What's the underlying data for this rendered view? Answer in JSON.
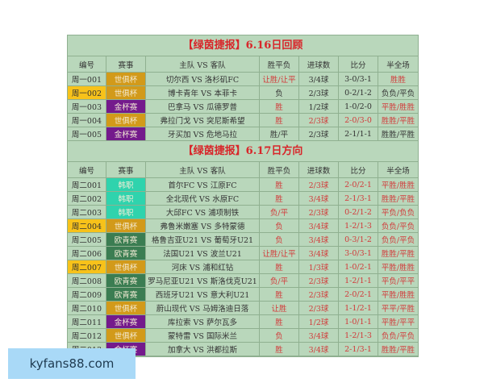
{
  "headers": [
    "编号",
    "赛事",
    "主队 VS 客队",
    "胜平负",
    "进球数",
    "比分",
    "半全场"
  ],
  "comp_colors": {
    "世俱杯": "#d29a1a",
    "金杯赛": "#741a8c",
    "韩职": "#2fd3ad",
    "欧青赛": "#3b7d52"
  },
  "id_highlight": "#f7c21a",
  "accent_red": "#d23a3a",
  "sections": [
    {
      "title": "【绿茵捷报】6.16日回顾",
      "rows": [
        {
          "id": "周一001",
          "comp": "世俱杯",
          "match": "切尔西 VS 洛杉矶FC",
          "wdl": "让胜/让平",
          "goals": "3/4球",
          "score": "3-0/3-1",
          "htft": "胜胜",
          "red": [
            3,
            6
          ],
          "hl": false
        },
        {
          "id": "周一002",
          "comp": "世俱杯",
          "match": "博卡青年 VS 本菲卡",
          "wdl": "负",
          "goals": "2/3球",
          "score": "0-2/1-2",
          "htft": "负负/平负",
          "red": [],
          "hl": true
        },
        {
          "id": "周一003",
          "comp": "金杯赛",
          "match": "巴拿马 VS 瓜德罗普",
          "wdl": "胜",
          "goals": "1/2球",
          "score": "1-0/2-0",
          "htft": "平胜/胜胜",
          "red": [
            3,
            6
          ],
          "hl": false
        },
        {
          "id": "周一004",
          "comp": "世俱杯",
          "match": "弗拉门戈 VS 突尼斯希望",
          "wdl": "胜",
          "goals": "2/3球",
          "score": "2-0/3-0",
          "htft": "胜胜/平胜",
          "red": [
            3,
            4,
            5,
            6
          ],
          "hl": false
        },
        {
          "id": "周一005",
          "comp": "金杯赛",
          "match": "牙买加 VS 危地马拉",
          "wdl": "胜/平",
          "goals": "2/3球",
          "score": "2-1/1-1",
          "htft": "胜胜/平胜",
          "red": [],
          "hl": false
        }
      ]
    },
    {
      "title": "【绿茵捷报】6.17日方向",
      "rows": [
        {
          "id": "周二001",
          "comp": "韩职",
          "match": "首尔FC VS 江原FC",
          "wdl": "胜",
          "goals": "2/3球",
          "score": "2-0/2-1",
          "htft": "平胜/胜胜",
          "red": [
            3,
            4,
            5,
            6
          ],
          "hl": false
        },
        {
          "id": "周二002",
          "comp": "韩职",
          "match": "全北现代 VS 水原FC",
          "wdl": "胜",
          "goals": "3/4球",
          "score": "2-1/3-1",
          "htft": "胜胜/平胜",
          "red": [
            3,
            4,
            5,
            6
          ],
          "hl": false
        },
        {
          "id": "周二003",
          "comp": "韩职",
          "match": "大邱FC VS 浦项制铁",
          "wdl": "负/平",
          "goals": "2/3球",
          "score": "0-2/1-2",
          "htft": "平负/负负",
          "red": [
            3,
            4,
            5,
            6
          ],
          "hl": false
        },
        {
          "id": "周二004",
          "comp": "世俱杯",
          "match": "弗鲁米嫩塞 VS 多特蒙德",
          "wdl": "负",
          "goals": "3/4球",
          "score": "1-2/1-3",
          "htft": "负负/平负",
          "red": [
            3,
            4,
            5,
            6
          ],
          "hl": true
        },
        {
          "id": "周二005",
          "comp": "欧青赛",
          "match": "格鲁吉亚U21 VS 葡萄牙U21",
          "wdl": "负",
          "goals": "3/4球",
          "score": "0-3/1-2",
          "htft": "负负/平负",
          "red": [
            3,
            4,
            5,
            6
          ],
          "hl": false
        },
        {
          "id": "周二006",
          "comp": "欧青赛",
          "match": "法国U21 VS 波兰U21",
          "wdl": "让胜/让平",
          "goals": "3/4球",
          "score": "3-0/3-1",
          "htft": "胜胜/平胜",
          "red": [
            3,
            4,
            5,
            6
          ],
          "hl": false
        },
        {
          "id": "周二007",
          "comp": "世俱杯",
          "match": "河床 VS 浦和红钻",
          "wdl": "胜",
          "goals": "1/3球",
          "score": "1-0/2-1",
          "htft": "平胜/胜胜",
          "red": [
            3,
            4,
            5,
            6
          ],
          "hl": true
        },
        {
          "id": "周二008",
          "comp": "欧青赛",
          "match": "罗马尼亚U21 VS 斯洛伐克U21",
          "wdl": "负/平",
          "goals": "2/3球",
          "score": "1-2/1-1",
          "htft": "平负/平平",
          "red": [
            3,
            4,
            5,
            6
          ],
          "hl": false
        },
        {
          "id": "周二009",
          "comp": "欧青赛",
          "match": "西班牙U21 VS 意大利U21",
          "wdl": "胜",
          "goals": "2/3球",
          "score": "2-0/2-1",
          "htft": "平胜/胜胜",
          "red": [
            3,
            4,
            5,
            6
          ],
          "hl": false
        },
        {
          "id": "周二010",
          "comp": "世俱杯",
          "match": "蔚山现代 VS 马姆洛迪日落",
          "wdl": "让胜",
          "goals": "2/3球",
          "score": "1-1/2-1",
          "htft": "平平/平胜",
          "red": [
            3,
            4,
            5,
            6
          ],
          "hl": false
        },
        {
          "id": "周二011",
          "comp": "金杯赛",
          "match": "库拉索 VS 萨尔瓦多",
          "wdl": "胜",
          "goals": "1/2球",
          "score": "1-0/1-1",
          "htft": "平胜/平平",
          "red": [
            3,
            4,
            5,
            6
          ],
          "hl": false
        },
        {
          "id": "周二012",
          "comp": "世俱杯",
          "match": "蒙特雷 VS 国际米兰",
          "wdl": "负",
          "goals": "3/4球",
          "score": "1-2/1-3",
          "htft": "负负/平负",
          "red": [
            3,
            4,
            5,
            6
          ],
          "hl": false
        },
        {
          "id": "周二013",
          "comp": "金杯赛",
          "match": "加拿大 VS 洪都拉斯",
          "wdl": "胜",
          "goals": "3/4球",
          "score": "2-1/3-1",
          "htft": "胜胜/平胜",
          "red": [
            3,
            4,
            5,
            6
          ],
          "hl": false
        }
      ]
    }
  ],
  "watermark": "kyfans88.com"
}
